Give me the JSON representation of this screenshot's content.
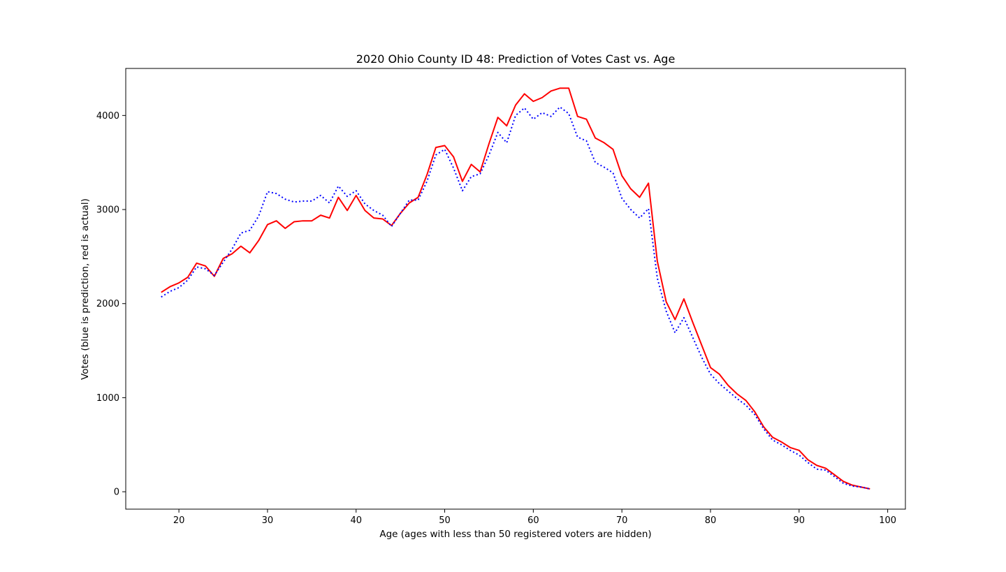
{
  "chart_data": {
    "type": "line",
    "title": "2020 Ohio County ID 48: Prediction of Votes Cast vs. Age",
    "xlabel": "Age (ages with less than 50 registered voters are hidden)",
    "ylabel": "Votes (blue is prediction, red is actual)",
    "xlim": [
      14,
      102
    ],
    "ylim": [
      -185,
      4500
    ],
    "xticks": [
      20,
      30,
      40,
      50,
      60,
      70,
      80,
      90,
      100
    ],
    "yticks": [
      0,
      1000,
      2000,
      3000,
      4000
    ],
    "grid": false,
    "legend": "none",
    "x": [
      18,
      19,
      20,
      21,
      22,
      23,
      24,
      25,
      26,
      27,
      28,
      29,
      30,
      31,
      32,
      33,
      34,
      35,
      36,
      37,
      38,
      39,
      40,
      41,
      42,
      43,
      44,
      45,
      46,
      47,
      48,
      49,
      50,
      51,
      52,
      53,
      54,
      55,
      56,
      57,
      58,
      59,
      60,
      61,
      62,
      63,
      64,
      65,
      66,
      67,
      68,
      69,
      70,
      71,
      72,
      73,
      74,
      75,
      76,
      77,
      78,
      79,
      80,
      81,
      82,
      83,
      84,
      85,
      86,
      87,
      88,
      89,
      90,
      91,
      92,
      93,
      94,
      95,
      96,
      97,
      98
    ],
    "series": [
      {
        "color": "#ff0000",
        "style": "solid",
        "values": [
          2120,
          2180,
          2220,
          2280,
          2430,
          2400,
          2290,
          2480,
          2530,
          2610,
          2540,
          2670,
          2840,
          2880,
          2800,
          2870,
          2880,
          2880,
          2940,
          2910,
          3130,
          2990,
          3150,
          2990,
          2910,
          2900,
          2830,
          2960,
          3070,
          3130,
          3370,
          3660,
          3680,
          3560,
          3300,
          3480,
          3400,
          3700,
          3980,
          3890,
          4110,
          4230,
          4150,
          4190,
          4260,
          4290,
          4290,
          3990,
          3960,
          3760,
          3710,
          3640,
          3360,
          3220,
          3130,
          3280,
          2450,
          2020,
          1830,
          2050,
          1800,
          1560,
          1320,
          1250,
          1130,
          1040,
          970,
          850,
          690,
          580,
          530,
          470,
          440,
          340,
          280,
          250,
          180,
          110,
          70,
          50,
          30
        ]
      },
      {
        "color": "#0000ff",
        "style": "dotted",
        "values": [
          2070,
          2130,
          2170,
          2250,
          2390,
          2370,
          2300,
          2440,
          2580,
          2750,
          2780,
          2930,
          3190,
          3170,
          3110,
          3080,
          3090,
          3090,
          3150,
          3070,
          3250,
          3140,
          3200,
          3060,
          2990,
          2940,
          2820,
          2960,
          3100,
          3100,
          3300,
          3580,
          3640,
          3440,
          3200,
          3350,
          3380,
          3580,
          3820,
          3710,
          4000,
          4080,
          3960,
          4030,
          3990,
          4090,
          4020,
          3770,
          3730,
          3500,
          3450,
          3390,
          3120,
          3000,
          2910,
          3010,
          2270,
          1920,
          1690,
          1850,
          1640,
          1430,
          1250,
          1150,
          1070,
          990,
          920,
          820,
          670,
          550,
          500,
          440,
          390,
          310,
          240,
          230,
          160,
          90,
          60,
          50,
          30
        ]
      }
    ]
  }
}
